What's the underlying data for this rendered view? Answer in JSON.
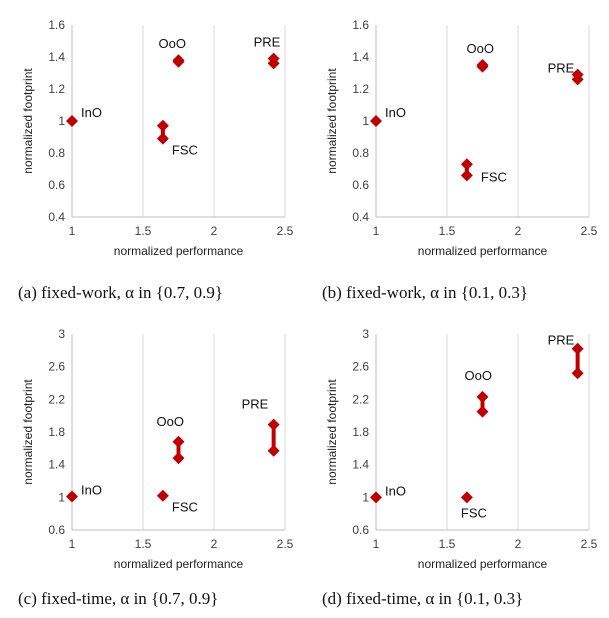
{
  "colors": {
    "marker": "#C00000",
    "grid": "#D9D9D9",
    "axis": "#BFBFBF"
  },
  "chart_data": [
    {
      "type": "scatter",
      "caption": "(a) fixed-work, α in {0.7, 0.9}",
      "xlabel": "normalized performance",
      "ylabel": "normalized footprint",
      "xlim": [
        1,
        2.5
      ],
      "ylim": [
        0.4,
        1.6
      ],
      "xticks": [
        1,
        1.5,
        2,
        2.5
      ],
      "xtick_labels": [
        "1",
        "1.5",
        "2",
        "2.5"
      ],
      "yticks": [
        0.4,
        0.6,
        0.8,
        1,
        1.2,
        1.4,
        1.6
      ],
      "ytick_labels": [
        "0.4",
        "0.6",
        "0.8",
        "1",
        "1.2",
        "1.4",
        "1.6"
      ],
      "grid": "vertical",
      "groups": [
        {
          "label": "InO",
          "points": [
            [
              1,
              1.0
            ]
          ]
        },
        {
          "label": "FSC",
          "points": [
            [
              1.64,
              0.97
            ],
            [
              1.64,
              0.89
            ]
          ]
        },
        {
          "label": "OoO",
          "points": [
            [
              1.75,
              1.38
            ],
            [
              1.75,
              1.37
            ]
          ]
        },
        {
          "label": "PRE",
          "points": [
            [
              2.42,
              1.39
            ],
            [
              2.42,
              1.36
            ]
          ]
        }
      ]
    },
    {
      "type": "scatter",
      "caption": "(b) fixed-work, α in {0.1, 0.3}",
      "xlabel": "normalized performance",
      "ylabel": "normalized footprint",
      "xlim": [
        1,
        2.5
      ],
      "ylim": [
        0.4,
        1.6
      ],
      "xticks": [
        1,
        1.5,
        2,
        2.5
      ],
      "xtick_labels": [
        "1",
        "1.5",
        "2",
        "2.5"
      ],
      "yticks": [
        0.4,
        0.6,
        0.8,
        1,
        1.2,
        1.4,
        1.6
      ],
      "ytick_labels": [
        "0.4",
        "0.6",
        "0.8",
        "1",
        "1.2",
        "1.4",
        "1.6"
      ],
      "grid": "vertical",
      "groups": [
        {
          "label": "InO",
          "points": [
            [
              1,
              1.0
            ]
          ]
        },
        {
          "label": "FSC",
          "points": [
            [
              1.64,
              0.73
            ],
            [
              1.64,
              0.66
            ]
          ]
        },
        {
          "label": "OoO",
          "points": [
            [
              1.75,
              1.35
            ],
            [
              1.75,
              1.34
            ]
          ]
        },
        {
          "label": "PRE",
          "points": [
            [
              2.42,
              1.29
            ],
            [
              2.42,
              1.26
            ]
          ]
        }
      ]
    },
    {
      "type": "scatter",
      "caption": "(c) fixed-time, α in {0.7, 0.9}",
      "xlabel": "normalized performance",
      "ylabel": "normalized footprint",
      "xlim": [
        1,
        2.5
      ],
      "ylim": [
        0.6,
        3
      ],
      "xticks": [
        1,
        1.5,
        2,
        2.5
      ],
      "xtick_labels": [
        "1",
        "1.5",
        "2",
        "2.5"
      ],
      "yticks": [
        0.6,
        1,
        1.4,
        1.8,
        2.2,
        2.6,
        3
      ],
      "ytick_labels": [
        "0.6",
        "1",
        "1.4",
        "1.8",
        "2.2",
        "2.6",
        "3"
      ],
      "grid": "vertical",
      "groups": [
        {
          "label": "InO",
          "points": [
            [
              1,
              1.01
            ]
          ]
        },
        {
          "label": "FSC",
          "points": [
            [
              1.64,
              1.02
            ]
          ]
        },
        {
          "label": "OoO",
          "points": [
            [
              1.75,
              1.68
            ],
            [
              1.75,
              1.48
            ]
          ]
        },
        {
          "label": "PRE",
          "points": [
            [
              2.42,
              1.89
            ],
            [
              2.42,
              1.57
            ]
          ]
        }
      ]
    },
    {
      "type": "scatter",
      "caption": "(d) fixed-time, α in {0.1, 0.3}",
      "xlabel": "normalized performance",
      "ylabel": "normalized footprint",
      "xlim": [
        1,
        2.5
      ],
      "ylim": [
        0.6,
        3
      ],
      "xticks": [
        1,
        1.5,
        2,
        2.5
      ],
      "xtick_labels": [
        "1",
        "1.5",
        "2",
        "2.5"
      ],
      "yticks": [
        0.6,
        1,
        1.4,
        1.8,
        2.2,
        2.6,
        3
      ],
      "ytick_labels": [
        "0.6",
        "1",
        "1.4",
        "1.8",
        "2.2",
        "2.6",
        "3"
      ],
      "grid": "vertical",
      "groups": [
        {
          "label": "InO",
          "points": [
            [
              1,
              1.0
            ]
          ]
        },
        {
          "label": "FSC",
          "points": [
            [
              1.64,
              1.0
            ]
          ]
        },
        {
          "label": "OoO",
          "points": [
            [
              1.75,
              2.23
            ],
            [
              1.75,
              2.05
            ]
          ]
        },
        {
          "label": "PRE",
          "points": [
            [
              2.42,
              2.82
            ],
            [
              2.42,
              2.52
            ]
          ]
        }
      ]
    }
  ]
}
